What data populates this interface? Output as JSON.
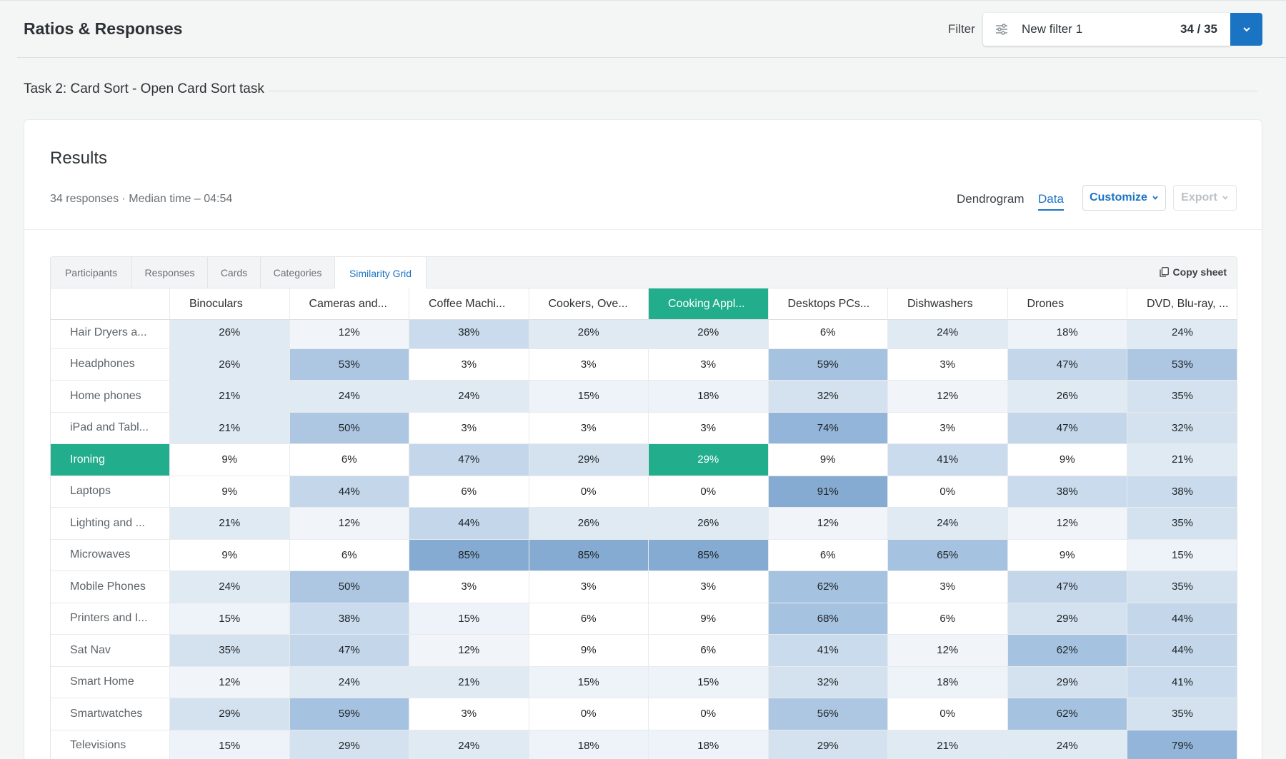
{
  "header": {
    "title": "Ratios & Responses",
    "filter_label": "Filter",
    "filter_name": "New filter 1",
    "filter_count": "34 / 35"
  },
  "task": {
    "title": "Task 2: Card Sort - Open Card Sort task"
  },
  "results": {
    "title": "Results",
    "meta": "34 responses · Median time – 04:54",
    "views": [
      "Dendrogram",
      "Data"
    ],
    "active_view": "Data",
    "customize_label": "Customize",
    "export_label": "Export"
  },
  "tabs": [
    {
      "label": "Participants"
    },
    {
      "label": "Responses"
    },
    {
      "label": "Cards"
    },
    {
      "label": "Categories"
    },
    {
      "label": "Similarity Grid"
    }
  ],
  "active_tab": "Similarity Grid",
  "copy_label": "Copy sheet",
  "grid": {
    "columns": [
      "Binoculars",
      "Cameras and...",
      "Coffee Machi...",
      "Cookers, Ove...",
      "Cooking Appl...",
      "Desktops PCs...",
      "Dishwashers",
      "Drones",
      "DVD, Blu-ray, ..."
    ],
    "highlight_column": 4,
    "highlight_row": 4,
    "rows": [
      {
        "label": "Hair Dryers a...",
        "values": [
          "26%",
          "12%",
          "38%",
          "26%",
          "26%",
          "6%",
          "24%",
          "18%",
          "24%"
        ]
      },
      {
        "label": "Headphones",
        "values": [
          "26%",
          "53%",
          "3%",
          "3%",
          "3%",
          "59%",
          "3%",
          "47%",
          "53%"
        ]
      },
      {
        "label": "Home phones",
        "values": [
          "21%",
          "24%",
          "24%",
          "15%",
          "18%",
          "32%",
          "12%",
          "26%",
          "35%"
        ]
      },
      {
        "label": "iPad and Tabl...",
        "values": [
          "21%",
          "50%",
          "3%",
          "3%",
          "3%",
          "74%",
          "3%",
          "47%",
          "32%"
        ]
      },
      {
        "label": "Ironing",
        "values": [
          "9%",
          "6%",
          "47%",
          "29%",
          "29%",
          "9%",
          "41%",
          "9%",
          "21%"
        ]
      },
      {
        "label": "Laptops",
        "values": [
          "9%",
          "44%",
          "6%",
          "0%",
          "0%",
          "91%",
          "0%",
          "38%",
          "38%"
        ]
      },
      {
        "label": "Lighting and ...",
        "values": [
          "21%",
          "12%",
          "44%",
          "26%",
          "26%",
          "12%",
          "24%",
          "12%",
          "35%"
        ]
      },
      {
        "label": "Microwaves",
        "values": [
          "9%",
          "6%",
          "85%",
          "85%",
          "85%",
          "6%",
          "65%",
          "9%",
          "15%"
        ]
      },
      {
        "label": "Mobile Phones",
        "values": [
          "24%",
          "50%",
          "3%",
          "3%",
          "3%",
          "62%",
          "3%",
          "47%",
          "35%"
        ]
      },
      {
        "label": "Printers and I...",
        "values": [
          "15%",
          "38%",
          "15%",
          "6%",
          "9%",
          "68%",
          "6%",
          "29%",
          "44%"
        ]
      },
      {
        "label": "Sat Nav",
        "values": [
          "35%",
          "47%",
          "12%",
          "9%",
          "6%",
          "41%",
          "12%",
          "62%",
          "44%"
        ]
      },
      {
        "label": "Smart Home",
        "values": [
          "12%",
          "24%",
          "21%",
          "15%",
          "15%",
          "32%",
          "18%",
          "29%",
          "41%"
        ]
      },
      {
        "label": "Smartwatches",
        "values": [
          "29%",
          "59%",
          "3%",
          "0%",
          "0%",
          "56%",
          "0%",
          "62%",
          "35%"
        ]
      },
      {
        "label": "Televisions",
        "values": [
          "15%",
          "29%",
          "24%",
          "18%",
          "18%",
          "29%",
          "21%",
          "24%",
          "79%"
        ]
      }
    ]
  }
}
